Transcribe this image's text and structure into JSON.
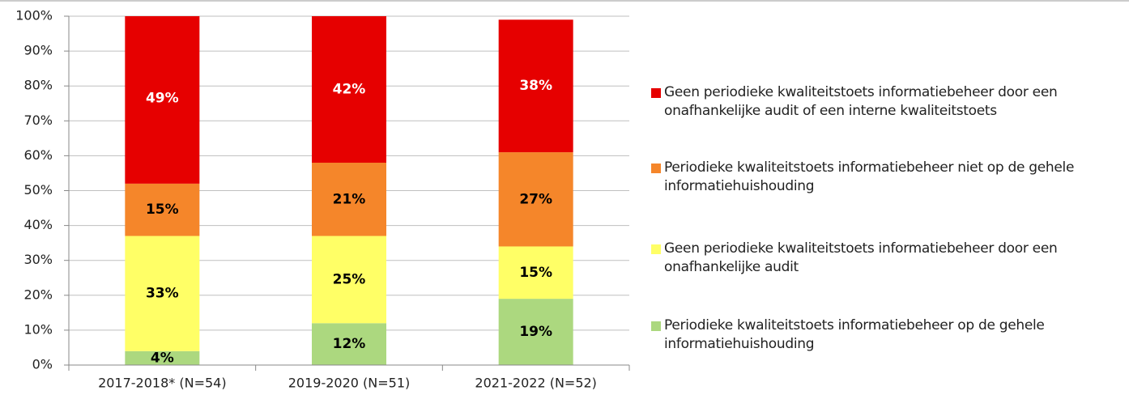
{
  "chart_data": {
    "type": "stacked_bar",
    "categories": [
      "2017-2018* (N=54)",
      "2019-2020 (N=51)",
      "2021-2022 (N=52)"
    ],
    "series": [
      {
        "name": "Periodieke kwaliteitstoets informatiebeheer op de gehele informatiehuishouding",
        "color": "#acd87f",
        "label_color": "#000000",
        "values": [
          4,
          12,
          19
        ],
        "value_labels": [
          "4%",
          "12%",
          "19%"
        ]
      },
      {
        "name": "Geen periodieke kwaliteitstoets informatiebeheer door een onafhankelijke audit",
        "color": "#ffff66",
        "label_color": "#000000",
        "values": [
          33,
          25,
          15
        ],
        "value_labels": [
          "33%",
          "25%",
          "15%"
        ]
      },
      {
        "name": "Periodieke kwaliteitstoets informatiebeheer niet op de gehele informatiehuishouding",
        "color": "#f5862a",
        "label_color": "#000000",
        "values": [
          15,
          21,
          27
        ],
        "value_labels": [
          "15%",
          "21%",
          "27%"
        ]
      },
      {
        "name": "Geen periodieke kwaliteitstoets informatiebeheer door een onafhankelijke audit of een interne kwaliteitstoets",
        "color": "#e60000",
        "label_color": "#ffffff",
        "values": [
          49,
          42,
          38
        ],
        "value_labels": [
          "49%",
          "42%",
          "38%"
        ]
      }
    ],
    "ylim": [
      0,
      100
    ],
    "yticks": [
      {
        "value": 0,
        "label": "0%"
      },
      {
        "value": 10,
        "label": "10%"
      },
      {
        "value": 20,
        "label": "20%"
      },
      {
        "value": 30,
        "label": "30%"
      },
      {
        "value": 40,
        "label": "40%"
      },
      {
        "value": 50,
        "label": "50%"
      },
      {
        "value": 60,
        "label": "60%"
      },
      {
        "value": 70,
        "label": "70%"
      },
      {
        "value": 80,
        "label": "80%"
      },
      {
        "value": 90,
        "label": "90%"
      },
      {
        "value": 100,
        "label": "100%"
      }
    ],
    "grid": true,
    "legend": "right"
  }
}
